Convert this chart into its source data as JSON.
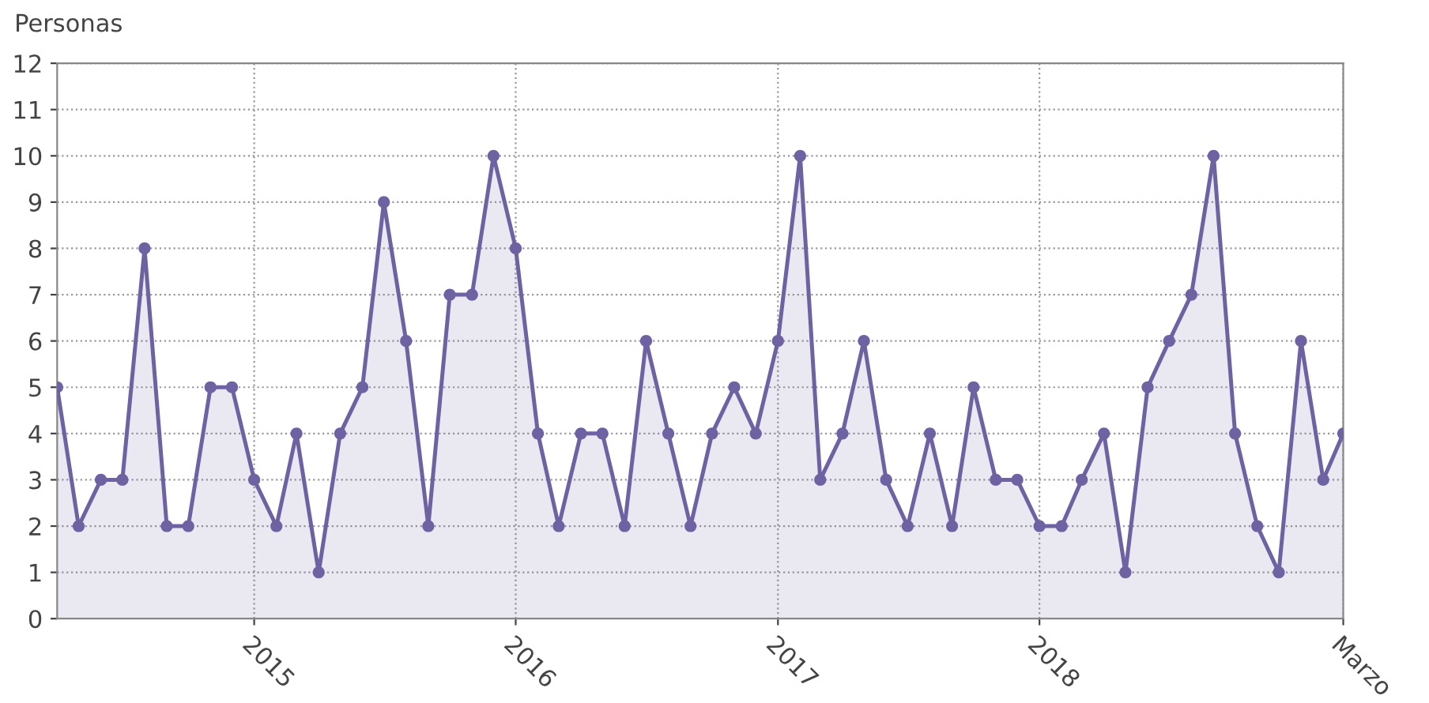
{
  "chart_data": {
    "type": "area",
    "ylabel": "Personas",
    "x": [
      "2014-04",
      "2014-05",
      "2014-06",
      "2014-07",
      "2014-08",
      "2014-09",
      "2014-10",
      "2014-11",
      "2014-12",
      "2015-01",
      "2015-02",
      "2015-03",
      "2015-04",
      "2015-05",
      "2015-06",
      "2015-07",
      "2015-08",
      "2015-09",
      "2015-10",
      "2015-11",
      "2015-12",
      "2016-01",
      "2016-02",
      "2016-03",
      "2016-04",
      "2016-05",
      "2016-06",
      "2016-07",
      "2016-08",
      "2016-09",
      "2016-10",
      "2016-11",
      "2016-12",
      "2017-01",
      "2017-02",
      "2017-03",
      "2017-04",
      "2017-05",
      "2017-06",
      "2017-07",
      "2017-08",
      "2017-09",
      "2017-10",
      "2017-11",
      "2017-12",
      "2018-01",
      "2018-02",
      "2018-03",
      "2018-04",
      "2018-05",
      "2018-06",
      "2018-07",
      "2018-08",
      "2018-09",
      "2018-10",
      "2018-11",
      "2018-12",
      "2019-01",
      "2019-02",
      "2019-03"
    ],
    "series": [
      {
        "color": "#6f62a3",
        "values": [
          5,
          2,
          3,
          3,
          8,
          2,
          2,
          5,
          5,
          3,
          2,
          4,
          1,
          4,
          5,
          9,
          6,
          2,
          7,
          7,
          10,
          8,
          4,
          2,
          4,
          4,
          2,
          6,
          4,
          2,
          4,
          5,
          4,
          6,
          10,
          3,
          4,
          6,
          3,
          2,
          4,
          2,
          5,
          3,
          3,
          2,
          2,
          3,
          4,
          1,
          5,
          6,
          7,
          10,
          4,
          2,
          1,
          6,
          3,
          4
        ]
      }
    ],
    "xlim": [
      "2014-04",
      "2019-03"
    ],
    "xticks": [
      {
        "value": "2015-01",
        "label": "2015"
      },
      {
        "value": "2016-01",
        "label": "2016"
      },
      {
        "value": "2017-01",
        "label": "2017"
      },
      {
        "value": "2018-01",
        "label": "2018"
      },
      {
        "value": "2019-03",
        "label": "Marzo"
      }
    ],
    "ylim": [
      0,
      12
    ],
    "yticks": [
      0,
      1,
      2,
      3,
      4,
      5,
      6,
      7,
      8,
      9,
      10,
      11,
      12
    ],
    "grid": true,
    "marker": "circle",
    "line_style": "solid"
  }
}
